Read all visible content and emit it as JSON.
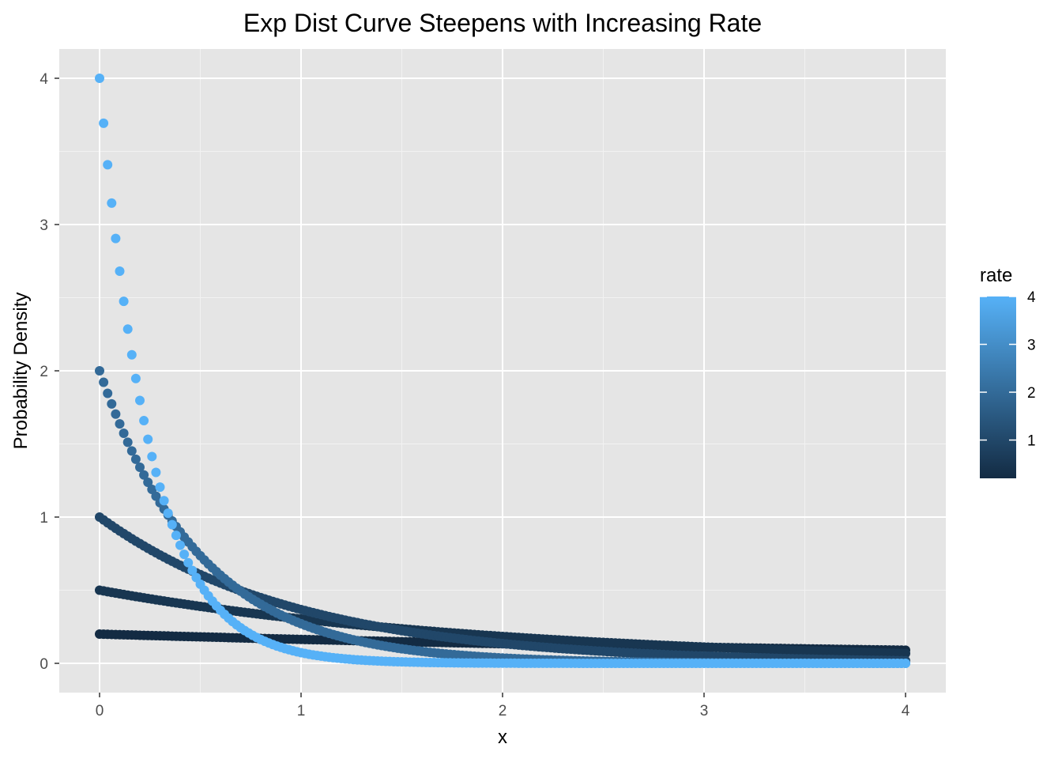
{
  "chart_data": {
    "type": "scatter",
    "title": "Exp Dist Curve Steepens with Increasing Rate",
    "xlabel": "x",
    "ylabel": "Probability Density",
    "xlim": [
      -0.2,
      4.2
    ],
    "ylim": [
      -0.2,
      4.2
    ],
    "x_ticks": [
      0,
      1,
      2,
      3,
      4
    ],
    "x_tick_labels": [
      "0",
      "1",
      "2",
      "3",
      "4"
    ],
    "y_ticks": [
      0,
      1,
      2,
      3,
      4
    ],
    "y_tick_labels": [
      "0",
      "1",
      "2",
      "3",
      "4"
    ],
    "grid": true,
    "panel_background": "#e5e5e5",
    "x_sampling": {
      "from": 0,
      "to": 4,
      "step": 0.02
    },
    "function": "y = rate * exp(-rate * x)",
    "series": [
      {
        "rate": 0.2
      },
      {
        "rate": 0.5
      },
      {
        "rate": 1
      },
      {
        "rate": 2
      },
      {
        "rate": 4
      }
    ],
    "legend": {
      "title": "rate",
      "position": "right",
      "range": [
        0.2,
        4
      ],
      "ticks": [
        1,
        2,
        3,
        4
      ],
      "tick_labels": [
        "1",
        "2",
        "3",
        "4"
      ],
      "color_low": "#132b43",
      "color_high": "#56b1f7"
    }
  }
}
